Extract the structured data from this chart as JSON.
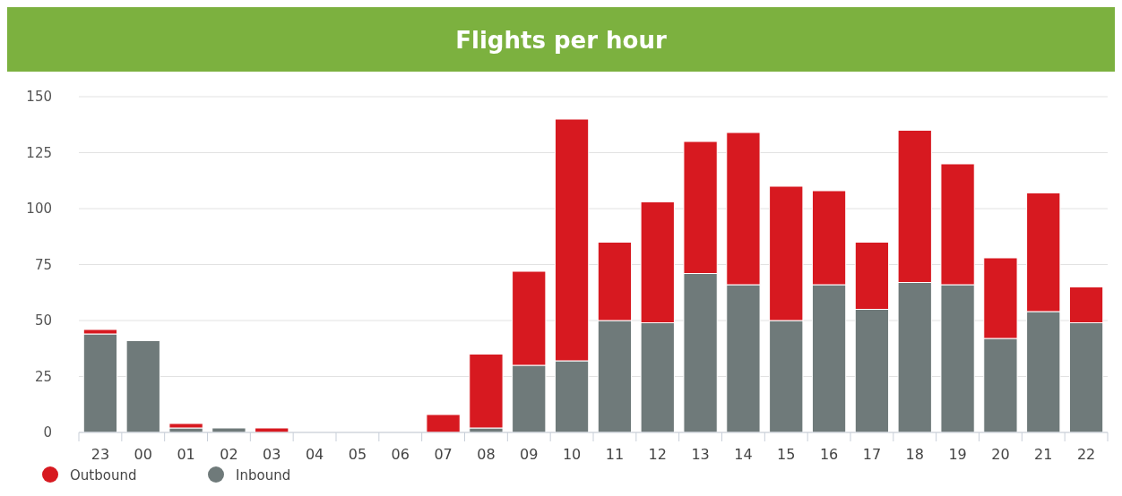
{
  "chart_data": {
    "type": "bar",
    "title": "Flights per hour",
    "stacked": true,
    "categories": [
      "23",
      "00",
      "01",
      "02",
      "03",
      "04",
      "05",
      "06",
      "07",
      "08",
      "09",
      "10",
      "11",
      "12",
      "13",
      "14",
      "15",
      "16",
      "17",
      "18",
      "19",
      "20",
      "21",
      "22"
    ],
    "series": [
      {
        "name": "Inbound",
        "color": "#6f7a7a",
        "values": [
          44,
          41,
          2,
          2,
          0,
          0,
          0,
          0,
          0,
          2,
          30,
          32,
          50,
          49,
          71,
          66,
          50,
          66,
          55,
          67,
          66,
          42,
          54,
          49
        ]
      },
      {
        "name": "Outbound",
        "color": "#d71920",
        "values": [
          2,
          0,
          2,
          0,
          2,
          0,
          0,
          0,
          8,
          33,
          42,
          108,
          35,
          54,
          59,
          68,
          60,
          42,
          30,
          68,
          54,
          36,
          53,
          16
        ]
      }
    ],
    "ylim": [
      0,
      150
    ],
    "yticks": [
      0,
      25,
      50,
      75,
      100,
      125,
      150
    ],
    "grid": "y",
    "legend": "bottom left"
  }
}
